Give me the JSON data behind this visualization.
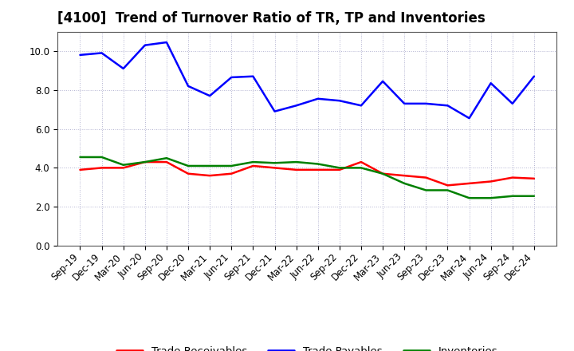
{
  "title": "[4100]  Trend of Turnover Ratio of TR, TP and Inventories",
  "x_labels": [
    "Sep-19",
    "Dec-19",
    "Mar-20",
    "Jun-20",
    "Sep-20",
    "Dec-20",
    "Mar-21",
    "Jun-21",
    "Sep-21",
    "Dec-21",
    "Mar-22",
    "Jun-22",
    "Sep-22",
    "Dec-22",
    "Mar-23",
    "Jun-23",
    "Sep-23",
    "Dec-23",
    "Mar-24",
    "Jun-24",
    "Sep-24",
    "Dec-24"
  ],
  "trade_receivables": [
    3.9,
    4.0,
    4.0,
    4.3,
    4.3,
    3.7,
    3.6,
    3.7,
    4.1,
    4.0,
    3.9,
    3.9,
    3.9,
    4.3,
    3.7,
    3.6,
    3.5,
    3.1,
    3.2,
    3.3,
    3.5,
    3.45
  ],
  "trade_payables": [
    9.8,
    9.9,
    9.1,
    10.3,
    10.45,
    8.2,
    7.7,
    8.65,
    8.7,
    6.9,
    7.2,
    7.55,
    7.45,
    7.2,
    8.45,
    7.3,
    7.3,
    7.2,
    6.55,
    8.35,
    7.3,
    8.7
  ],
  "inventories": [
    4.55,
    4.55,
    4.15,
    4.3,
    4.5,
    4.1,
    4.1,
    4.1,
    4.3,
    4.25,
    4.3,
    4.2,
    4.0,
    4.0,
    3.7,
    3.2,
    2.85,
    2.85,
    2.45,
    2.45,
    2.55,
    2.55
  ],
  "tr_color": "#ff0000",
  "tp_color": "#0000ff",
  "inv_color": "#008000",
  "ylim": [
    0.0,
    11.0
  ],
  "yticks": [
    0.0,
    2.0,
    4.0,
    6.0,
    8.0,
    10.0
  ],
  "background_color": "#ffffff",
  "grid_color": "#aaaaaa",
  "title_fontsize": 12,
  "tick_fontsize": 8.5,
  "legend_fontsize": 9.5,
  "linewidth": 1.8
}
